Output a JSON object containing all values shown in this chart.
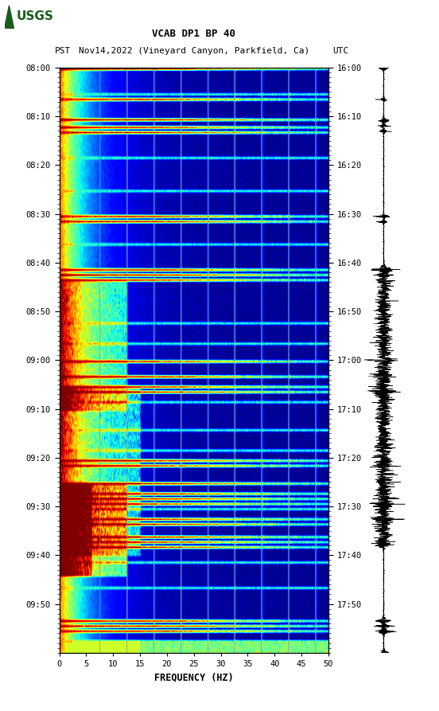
{
  "title_line1": "VCAB DP1 BP 40",
  "title_line2": "PST   Nov14,2022 (Vineyard Canyon, Parkfield, Ca)        UTC",
  "xlabel": "FREQUENCY (HZ)",
  "freq_min": 0,
  "freq_max": 50,
  "pst_yticks": [
    "08:00",
    "08:10",
    "08:20",
    "08:30",
    "08:40",
    "08:50",
    "09:00",
    "09:10",
    "09:20",
    "09:30",
    "09:40",
    "09:50"
  ],
  "utc_yticks": [
    "16:00",
    "16:10",
    "16:20",
    "16:30",
    "16:40",
    "16:50",
    "17:00",
    "17:10",
    "17:20",
    "17:30",
    "17:40",
    "17:50"
  ],
  "freq_ticks": [
    0,
    5,
    10,
    15,
    20,
    25,
    30,
    35,
    40,
    45,
    50
  ],
  "grid_freqs": [
    7.5,
    12.5,
    17.5,
    22.5,
    27.5,
    32.5,
    37.5,
    42.5,
    47.5
  ],
  "background_color": "#ffffff",
  "logo_color": "#1a5c1a",
  "font_color": "#000000",
  "colormap": "jet",
  "n_time": 230,
  "n_freq": 500,
  "seed": 42,
  "seismogram_color": "#000000"
}
